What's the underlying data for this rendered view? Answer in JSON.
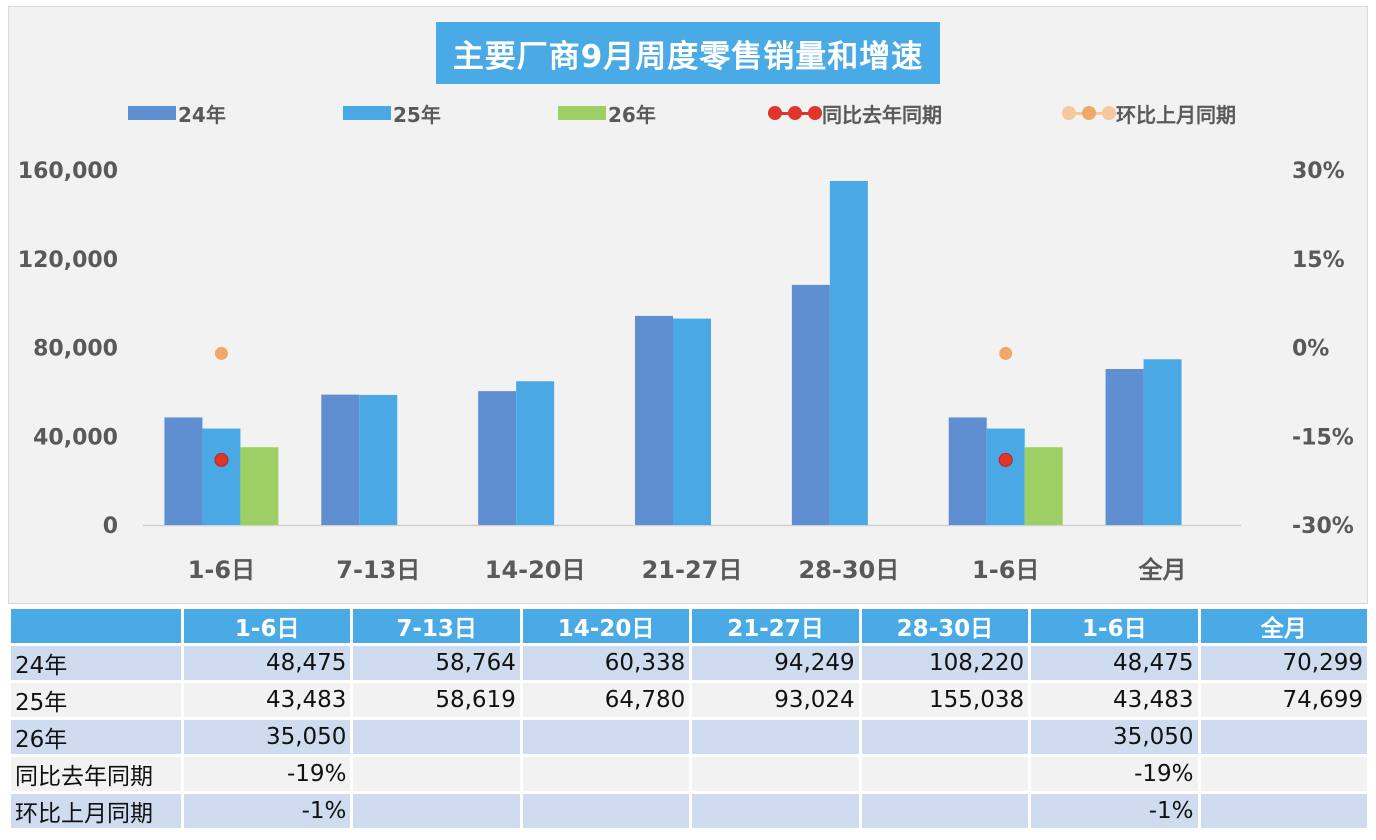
{
  "colors": {
    "bar24": "#5f8fd1",
    "bar25": "#4aa9e4",
    "bar26": "#9dcf64",
    "yoy": "#e0352b",
    "mom": "#f0a868",
    "header_bg": "#4aaae6"
  },
  "chart_data": {
    "type": "bar",
    "title": "主要厂商9月周度零售销量和增速",
    "categories": [
      "1-6日",
      "7-13日",
      "14-20日",
      "21-27日",
      "28-30日",
      "1-6日",
      "全月"
    ],
    "series": [
      {
        "name": "24年",
        "type": "bar",
        "values": [
          48475,
          58764,
          60338,
          94249,
          108220,
          48475,
          70299
        ]
      },
      {
        "name": "25年",
        "type": "bar",
        "values": [
          43483,
          58619,
          64780,
          93024,
          155038,
          43483,
          74699
        ]
      },
      {
        "name": "26年",
        "type": "bar",
        "values": [
          35050,
          null,
          null,
          null,
          null,
          35050,
          null
        ]
      },
      {
        "name": "同比去年同期",
        "type": "line",
        "axis": "right",
        "values": [
          -0.19,
          null,
          null,
          null,
          null,
          -0.19,
          null
        ]
      },
      {
        "name": "环比上月同期",
        "type": "line",
        "axis": "right",
        "values": [
          -0.01,
          null,
          null,
          null,
          null,
          -0.01,
          null
        ]
      }
    ],
    "ylim": [
      0,
      160000
    ],
    "y_ticks": [
      "160,000",
      "120,000",
      "80,000",
      "40,000",
      "0"
    ],
    "y2lim": [
      -0.3,
      0.3
    ],
    "y2_ticks": [
      "30%",
      "15%",
      "0%",
      "-15%",
      "-30%"
    ],
    "legend_position": "top",
    "grid": false
  },
  "table": {
    "headers": [
      "",
      "1-6日",
      "7-13日",
      "14-20日",
      "21-27日",
      "28-30日",
      "1-6日",
      "全月"
    ],
    "rows": [
      {
        "label": "24年",
        "cells": [
          "48,475",
          "58,764",
          "60,338",
          "94,249",
          "108,220",
          "48,475",
          "70,299"
        ]
      },
      {
        "label": "25年",
        "cells": [
          "43,483",
          "58,619",
          "64,780",
          "93,024",
          "155,038",
          "43,483",
          "74,699"
        ]
      },
      {
        "label": "26年",
        "cells": [
          "35,050",
          "",
          "",
          "",
          "",
          "35,050",
          ""
        ]
      },
      {
        "label": "同比去年同期",
        "cells": [
          "-19%",
          "",
          "",
          "",
          "",
          "-19%",
          ""
        ]
      },
      {
        "label": "环比上月同期",
        "cells": [
          "-1%",
          "",
          "",
          "",
          "",
          "-1%",
          ""
        ]
      }
    ]
  }
}
